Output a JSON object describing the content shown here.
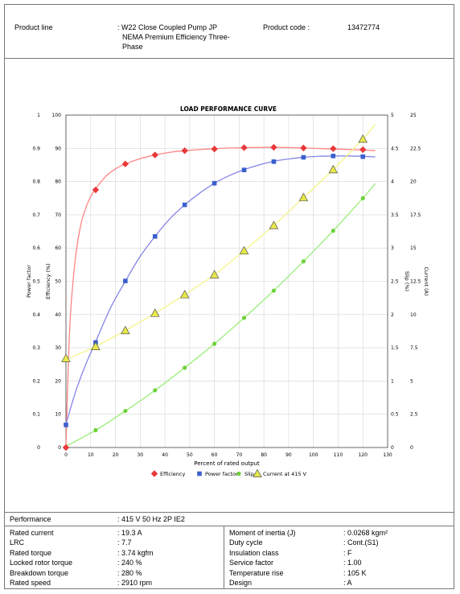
{
  "header": {
    "product_line_label": "Product line",
    "product_line_value_1": ": W22 Close Coupled Pump JP",
    "product_line_value_2": "NEMA Premium Efficiency Three-",
    "product_line_value_3": "Phase",
    "product_code_label": "Product code :",
    "product_code_value": "13472774"
  },
  "chart_data": {
    "type": "line",
    "title": "LOAD PERFORMANCE CURVE",
    "xlabel": "Percent of rated output",
    "xlim": [
      0,
      130
    ],
    "x_ticks": [
      "0",
      "10",
      "20",
      "30",
      "40",
      "50",
      "60",
      "70",
      "80",
      "90",
      "100",
      "110",
      "120",
      "130"
    ],
    "axes": {
      "power_factor": {
        "label": "Power factor",
        "ticks": [
          "0",
          "0.1",
          "0.2",
          "0.3",
          "0.4",
          "0.5",
          "0.6",
          "0.7",
          "0.8",
          "0.9",
          "1"
        ],
        "range": [
          0,
          1
        ]
      },
      "efficiency": {
        "label": "Efficiency (%)",
        "ticks": [
          "0",
          "10",
          "20",
          "30",
          "40",
          "50",
          "60",
          "70",
          "80",
          "90",
          "100"
        ],
        "range": [
          0,
          100
        ]
      },
      "slip": {
        "label": "Slip (%)",
        "ticks": [
          "0",
          "0.5",
          "1",
          "1.5",
          "2",
          "2.5",
          "3",
          "3.5",
          "4",
          "4.5",
          "5"
        ],
        "range": [
          0,
          5
        ]
      },
      "current": {
        "label": "Current (A)",
        "ticks": [
          "0",
          "2.5",
          "5",
          "7.5",
          "10",
          "12.5",
          "15",
          "17.5",
          "20",
          "22.5",
          "25"
        ],
        "range": [
          0,
          25
        ]
      }
    },
    "grid": true,
    "legend_position": "bottom",
    "series": [
      {
        "name": "Efficiency",
        "axis": "efficiency",
        "color": "#e8393b",
        "marker": "diamond",
        "x": [
          0,
          12,
          24,
          36,
          48,
          60,
          72,
          84,
          96,
          108,
          120
        ],
        "y": [
          0,
          77.5,
          85.3,
          88.0,
          89.3,
          89.8,
          90.2,
          90.3,
          90.1,
          89.9,
          89.6
        ],
        "curve_x": [
          0,
          1,
          2,
          4,
          6,
          8,
          10,
          12,
          16,
          20,
          24,
          30,
          36,
          42,
          48,
          60,
          72,
          84,
          96,
          108,
          120,
          125
        ],
        "curve_y": [
          0,
          26,
          42,
          58,
          67,
          72,
          75.5,
          77.8,
          81.5,
          83.8,
          85.3,
          86.9,
          88.0,
          88.8,
          89.3,
          89.9,
          90.2,
          90.3,
          90.1,
          89.8,
          89.5,
          89.3
        ],
        "line_color": "#ff8585"
      },
      {
        "name": "Power factor",
        "axis": "power_factor",
        "color": "#3b5fcd",
        "marker": "square",
        "x": [
          0,
          12,
          24,
          36,
          48,
          60,
          72,
          84,
          96,
          108,
          120
        ],
        "y": [
          0.068,
          0.316,
          0.501,
          0.635,
          0.73,
          0.795,
          0.835,
          0.86,
          0.873,
          0.877,
          0.875
        ],
        "curve_x": [
          0,
          4,
          8,
          12,
          18,
          24,
          30,
          36,
          42,
          48,
          54,
          60,
          66,
          72,
          78,
          84,
          90,
          96,
          102,
          108,
          114,
          120,
          125
        ],
        "curve_y": [
          0.07,
          0.17,
          0.25,
          0.318,
          0.42,
          0.5,
          0.575,
          0.635,
          0.688,
          0.73,
          0.765,
          0.795,
          0.818,
          0.836,
          0.85,
          0.861,
          0.868,
          0.873,
          0.876,
          0.877,
          0.877,
          0.876,
          0.874
        ],
        "line_color": "#8585e6"
      },
      {
        "name": "Slip",
        "axis": "slip",
        "color": "#6fd03a",
        "marker": "circle",
        "x": [
          12,
          24,
          36,
          48,
          60,
          72,
          84,
          96,
          108,
          120
        ],
        "y": [
          0.26,
          0.55,
          0.86,
          1.2,
          1.56,
          1.95,
          2.36,
          2.8,
          3.26,
          3.75
        ],
        "curve_x": [
          0,
          12,
          24,
          36,
          48,
          60,
          72,
          84,
          96,
          108,
          120,
          125
        ],
        "curve_y": [
          0.02,
          0.26,
          0.55,
          0.86,
          1.2,
          1.56,
          1.95,
          2.36,
          2.8,
          3.26,
          3.75,
          3.97
        ],
        "line_color": "#99ee77"
      },
      {
        "name": "Current at 415 V",
        "axis": "current",
        "color": "#e8e84a",
        "marker": "triangle",
        "x": [
          0,
          12,
          24,
          36,
          48,
          60,
          72,
          84,
          96,
          108,
          120
        ],
        "y": [
          6.7,
          7.6,
          8.8,
          10.1,
          11.5,
          13.0,
          14.8,
          16.7,
          18.8,
          20.9,
          23.2
        ],
        "curve_x": [
          0,
          12,
          24,
          36,
          48,
          60,
          72,
          84,
          96,
          108,
          120,
          125
        ],
        "curve_y": [
          6.6,
          7.6,
          8.8,
          10.1,
          11.5,
          13.0,
          14.8,
          16.7,
          18.8,
          20.9,
          23.2,
          24.3
        ],
        "line_color": "#f5f58a"
      }
    ]
  },
  "specs": {
    "performance_label": "Performance",
    "performance_value": ": 415 V 50 Hz 2P IE2",
    "left": [
      {
        "label": "Rated current",
        "value": ": 19.3 A"
      },
      {
        "label": "LRC",
        "value": ": 7.7"
      },
      {
        "label": "Rated torque",
        "value": ": 3.74 kgfm"
      },
      {
        "label": "Locked rotor torque",
        "value": ": 240 %"
      },
      {
        "label": "Breakdown torque",
        "value": ": 280 %"
      },
      {
        "label": "Rated speed",
        "value": ": 2910 rpm"
      }
    ],
    "right": [
      {
        "label": "Moment of inertia (J)",
        "value": ": 0.0268 kgm²"
      },
      {
        "label": "Duty cycle",
        "value": ": Cont.(S1)"
      },
      {
        "label": "Insulation class",
        "value": ": F"
      },
      {
        "label": "Service factor",
        "value": ": 1.00"
      },
      {
        "label": "Temperature rise",
        "value": ": 105 K"
      },
      {
        "label": "Design",
        "value": ": A"
      }
    ]
  }
}
